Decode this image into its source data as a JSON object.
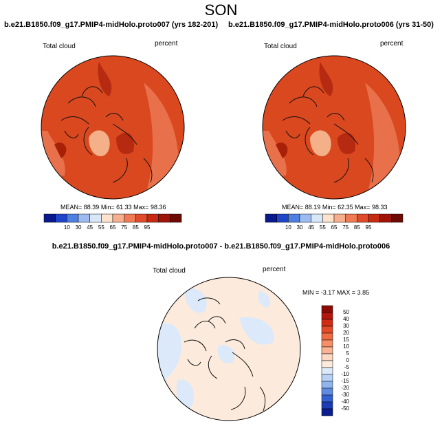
{
  "figure_title": "SON",
  "panels": [
    {
      "title": "b.e21.B1850.f09_g17.PMIP4-midHolo.proto007 (yrs 182-201)",
      "variable": "Total cloud",
      "units": "percent",
      "stats": {
        "mean": "88.39",
        "min": "61.33",
        "max": "98.36"
      }
    },
    {
      "title": "b.e21.B1850.f09_g17.PMIP4-midHolo.proto006 (yrs 31-50)",
      "variable": "Total cloud",
      "units": "percent",
      "stats": {
        "mean": "88.19",
        "min": "62.35",
        "max": "98.33"
      }
    },
    {
      "title": "b.e21.B1850.f09_g17.PMIP4-midHolo.proto007 - b.e21.B1850.f09_g17.PMIP4-midHolo.proto006",
      "variable": "Total cloud",
      "units": "percent",
      "stats": {
        "min": "-3.17",
        "max": "3.85"
      }
    }
  ],
  "labels": {
    "mean": "MEAN=",
    "min": "Min=",
    "max": "Max=",
    "diff_min": "MIN =",
    "diff_max": "MAX ="
  },
  "colorbar_top": {
    "ticks": [
      "10",
      "30",
      "45",
      "55",
      "65",
      "75",
      "85",
      "95"
    ],
    "colors": [
      "#0a1a8c",
      "#1f45c8",
      "#4f7fe0",
      "#9dbbf0",
      "#d8e6fa",
      "#fde2cc",
      "#f7b08f",
      "#ee7b55",
      "#e04c2b",
      "#c62a12",
      "#9e1508",
      "#6e0a04"
    ]
  },
  "colorbar_diff": {
    "ticks": [
      "50",
      "40",
      "30",
      "20",
      "15",
      "10",
      "5",
      "0",
      "-5",
      "-10",
      "-15",
      "-20",
      "-30",
      "-40",
      "-50"
    ],
    "colors": [
      "#8b0a05",
      "#b3160c",
      "#cf2b15",
      "#e34a28",
      "#f06b44",
      "#f68f67",
      "#f9b393",
      "#fdd8c2",
      "#fcebdc",
      "#dbe9fa",
      "#b8d2f5",
      "#8fb4ee",
      "#5f8be2",
      "#3461d1",
      "#1c3bb4",
      "#0a1f8f"
    ]
  }
}
